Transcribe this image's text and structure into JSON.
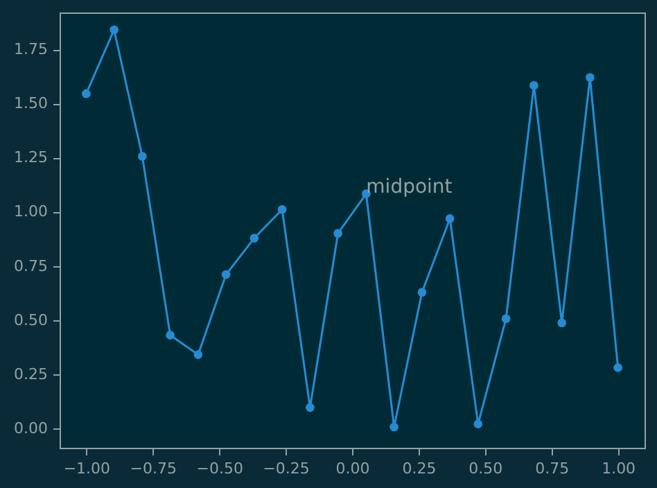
{
  "chart_data": {
    "type": "line",
    "marker": "circle",
    "grid": false,
    "x": [
      -1,
      -0.895,
      -0.789,
      -0.684,
      -0.579,
      -0.474,
      -0.368,
      -0.263,
      -0.158,
      -0.053,
      0.053,
      0.158,
      0.263,
      0.368,
      0.474,
      0.579,
      0.684,
      0.789,
      0.895,
      1
    ],
    "series": [
      {
        "color": "#268bd2",
        "values": [
          1.545,
          1.84,
          1.256,
          0.43,
          0.34,
          0.71,
          0.878,
          1.01,
          0.096,
          0.9,
          1.083,
          0.006,
          0.628,
          0.968,
          0.02,
          0.506,
          1.583,
          0.487,
          1.62,
          0.28
        ]
      }
    ],
    "xlim": [
      -1.1,
      1.1
    ],
    "ylim": [
      -0.09,
      1.92
    ],
    "xticks": [
      {
        "value": -1,
        "label": "−1.00"
      },
      {
        "value": -0.75,
        "label": "−0.75"
      },
      {
        "value": -0.5,
        "label": "−0.50"
      },
      {
        "value": -0.25,
        "label": "−0.25"
      },
      {
        "value": 0,
        "label": "0.00"
      },
      {
        "value": 0.25,
        "label": "0.25"
      },
      {
        "value": 0.5,
        "label": "0.50"
      },
      {
        "value": 0.75,
        "label": "0.75"
      },
      {
        "value": 1,
        "label": "1.00"
      }
    ],
    "yticks": [
      {
        "value": 0,
        "label": "0.00"
      },
      {
        "value": 0.25,
        "label": "0.25"
      },
      {
        "value": 0.5,
        "label": "0.50"
      },
      {
        "value": 0.75,
        "label": "0.75"
      },
      {
        "value": 1,
        "label": "1.00"
      },
      {
        "value": 1.25,
        "label": "1.25"
      },
      {
        "value": 1.5,
        "label": "1.50"
      },
      {
        "value": 1.75,
        "label": "1.75"
      }
    ],
    "annotations": [
      {
        "text": "midpoint",
        "x": 0.053,
        "y": 1.083
      }
    ]
  }
}
